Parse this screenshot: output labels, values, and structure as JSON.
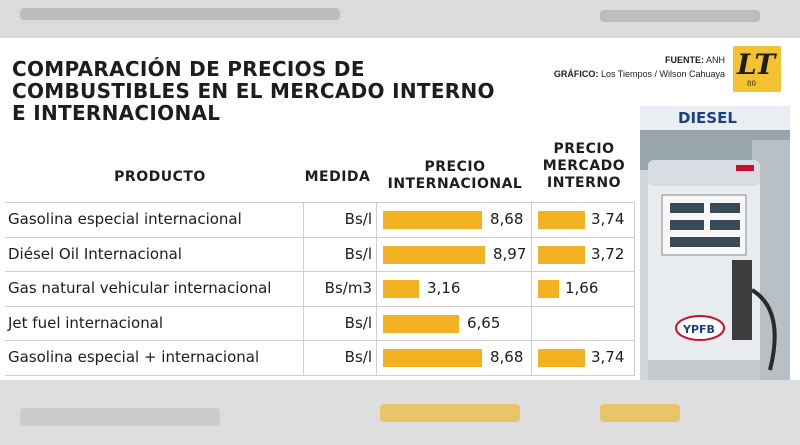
{
  "title_lines": [
    "COMPARACIÓN DE PRECIOS DE",
    "COMBUSTIBLES EN EL MERCADO INTERNO",
    "E INTERNACIONAL"
  ],
  "source": {
    "label": "FUENTE:",
    "value": "ANH"
  },
  "graphic": {
    "label": "GRÁFICO:",
    "value": "Los Tiempos / Wilson Cahuaya"
  },
  "logo": {
    "text": "LT",
    "sub": "80"
  },
  "photo": {
    "sign": "DIESEL",
    "brand": "YPFB"
  },
  "headers": {
    "product": "PRODUCTO",
    "unit": "MEDIDA",
    "intl": [
      "PRECIO",
      "INTERNACIONAL"
    ],
    "internal": [
      "PRECIO",
      "MERCADO",
      "INTERNO"
    ]
  },
  "colors": {
    "bar": "#f2b222",
    "logo": "#f3c230"
  },
  "chart_data": {
    "type": "bar",
    "categories": [
      "Gasolina especial internacional",
      "Diésel Oil Internacional",
      "Gas natural vehicular internacional",
      "Jet fuel internacional",
      "Gasolina especial + internacional"
    ],
    "units": [
      "Bs/l",
      "Bs/l",
      "Bs/m3",
      "Bs/l",
      "Bs/l"
    ],
    "series": [
      {
        "name": "PRECIO INTERNACIONAL",
        "values": [
          8.68,
          8.97,
          3.16,
          6.65,
          8.68
        ],
        "labels": [
          "8,68",
          "8,97",
          "3,16",
          "6,65",
          "8,68"
        ]
      },
      {
        "name": "PRECIO MERCADO INTERNO",
        "values": [
          3.74,
          3.72,
          1.66,
          null,
          3.74
        ],
        "labels": [
          "3,74",
          "3,72",
          "1,66",
          "",
          "3,74"
        ]
      }
    ]
  }
}
